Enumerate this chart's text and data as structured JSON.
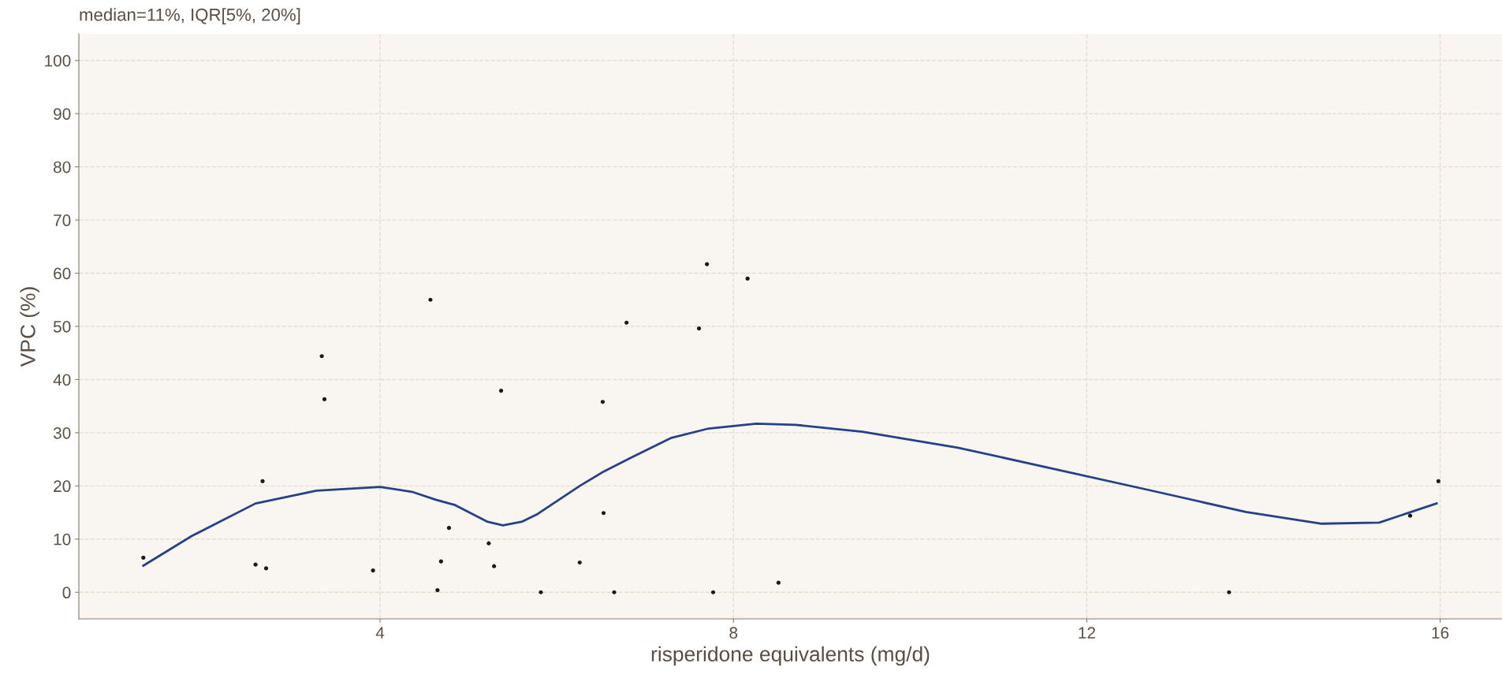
{
  "chart_data": {
    "type": "scatter",
    "title": "median=11%, IQR[5%, 20%]",
    "xlabel": "risperidone equivalents (mg/d)",
    "ylabel": "VPC (%)",
    "xlim": [
      0.59,
      16.7
    ],
    "ylim": [
      -5,
      105
    ],
    "xticks": [
      4,
      8,
      12,
      16
    ],
    "yticks": [
      0,
      10,
      20,
      30,
      40,
      50,
      60,
      70,
      80,
      90,
      100
    ],
    "grid": true,
    "series": [
      {
        "marker": "circle",
        "color": "#1a1a1a",
        "x": [
          1.32,
          2.59,
          2.67,
          2.71,
          3.34,
          3.37,
          3.92,
          4.57,
          4.65,
          4.69,
          4.78,
          5.23,
          5.29,
          5.37,
          5.82,
          6.26,
          6.52,
          6.53,
          6.65,
          6.79,
          7.61,
          7.7,
          7.77,
          8.16,
          8.51,
          13.61,
          15.66,
          15.98
        ],
        "values": [
          6.5,
          5.2,
          20.9,
          4.5,
          44.4,
          36.3,
          4.1,
          55.0,
          0.4,
          5.8,
          12.1,
          9.2,
          4.9,
          37.9,
          0,
          5.6,
          35.8,
          14.9,
          0,
          50.7,
          49.6,
          61.7,
          0,
          59.0,
          1.8,
          0,
          14.4,
          20.9
        ]
      },
      {
        "type": "line",
        "color": "#27408b",
        "marker": "none",
        "x": [
          1.32,
          1.87,
          2.59,
          3.28,
          4.0,
          4.36,
          4.63,
          4.85,
          5.21,
          5.39,
          5.61,
          5.77,
          6.26,
          6.53,
          6.85,
          7.29,
          7.72,
          8.26,
          8.7,
          9.46,
          10.54,
          11.63,
          12.71,
          13.8,
          14.66,
          15.31,
          15.96
        ],
        "values": [
          5.0,
          10.6,
          16.7,
          19.1,
          19.8,
          18.9,
          17.4,
          16.4,
          13.3,
          12.6,
          13.3,
          14.6,
          20.0,
          22.7,
          25.4,
          29.0,
          30.8,
          31.7,
          31.5,
          30.2,
          27.2,
          23.2,
          19.2,
          15.1,
          12.9,
          13.1,
          16.7
        ]
      }
    ]
  }
}
